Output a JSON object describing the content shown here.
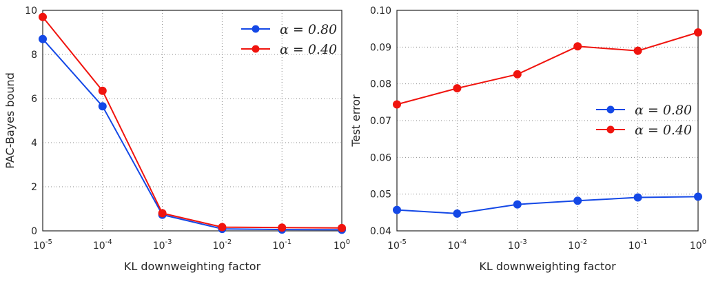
{
  "chart_data": [
    {
      "type": "line",
      "x": [
        1e-05,
        0.0001,
        0.001,
        0.01,
        0.1,
        1
      ],
      "xscale": "log",
      "xlim": [
        1e-05,
        1
      ],
      "ylim": [
        0,
        10
      ],
      "xlabel": "KL downweighting factor",
      "ylabel": "PAC-Bayes bound",
      "x_tick_labels": [
        {
          "base": "10",
          "exp": "-5"
        },
        {
          "base": "10",
          "exp": "-4"
        },
        {
          "base": "10",
          "exp": "-3"
        },
        {
          "base": "10",
          "exp": "-2"
        },
        {
          "base": "10",
          "exp": "-1"
        },
        {
          "base": "10",
          "exp": "0"
        }
      ],
      "y_ticks": [
        0,
        2,
        4,
        6,
        8,
        10
      ],
      "y_tick_labels": [
        "0",
        "2",
        "4",
        "6",
        "8",
        "10"
      ],
      "grid": true,
      "legend_position": "top-right",
      "series": [
        {
          "name": "α = 0.80",
          "color": "#1448e6",
          "values": [
            8.7,
            5.65,
            0.73,
            0.09,
            0.06,
            0.05
          ]
        },
        {
          "name": "α = 0.40",
          "color": "#f0140e",
          "values": [
            9.7,
            6.35,
            0.8,
            0.17,
            0.15,
            0.13
          ]
        }
      ]
    },
    {
      "type": "line",
      "x": [
        1e-05,
        0.0001,
        0.001,
        0.01,
        0.1,
        1
      ],
      "xscale": "log",
      "xlim": [
        1e-05,
        1
      ],
      "ylim": [
        0.04,
        0.1
      ],
      "xlabel": "KL downweighting factor",
      "ylabel": "Test error",
      "x_tick_labels": [
        {
          "base": "10",
          "exp": "-5"
        },
        {
          "base": "10",
          "exp": "-4"
        },
        {
          "base": "10",
          "exp": "-3"
        },
        {
          "base": "10",
          "exp": "-2"
        },
        {
          "base": "10",
          "exp": "-1"
        },
        {
          "base": "10",
          "exp": "0"
        }
      ],
      "y_ticks": [
        0.04,
        0.05,
        0.06,
        0.07,
        0.08,
        0.09,
        0.1
      ],
      "y_tick_labels": [
        "0.04",
        "0.05",
        "0.06",
        "0.07",
        "0.08",
        "0.09",
        "0.10"
      ],
      "grid": true,
      "legend_position": "center-right",
      "series": [
        {
          "name": "α = 0.80",
          "color": "#1448e6",
          "values": [
            0.0457,
            0.0447,
            0.0472,
            0.0482,
            0.0491,
            0.0493
          ]
        },
        {
          "name": "α = 0.40",
          "color": "#f0140e",
          "values": [
            0.0744,
            0.0788,
            0.0826,
            0.0902,
            0.089,
            0.094
          ]
        }
      ]
    }
  ]
}
